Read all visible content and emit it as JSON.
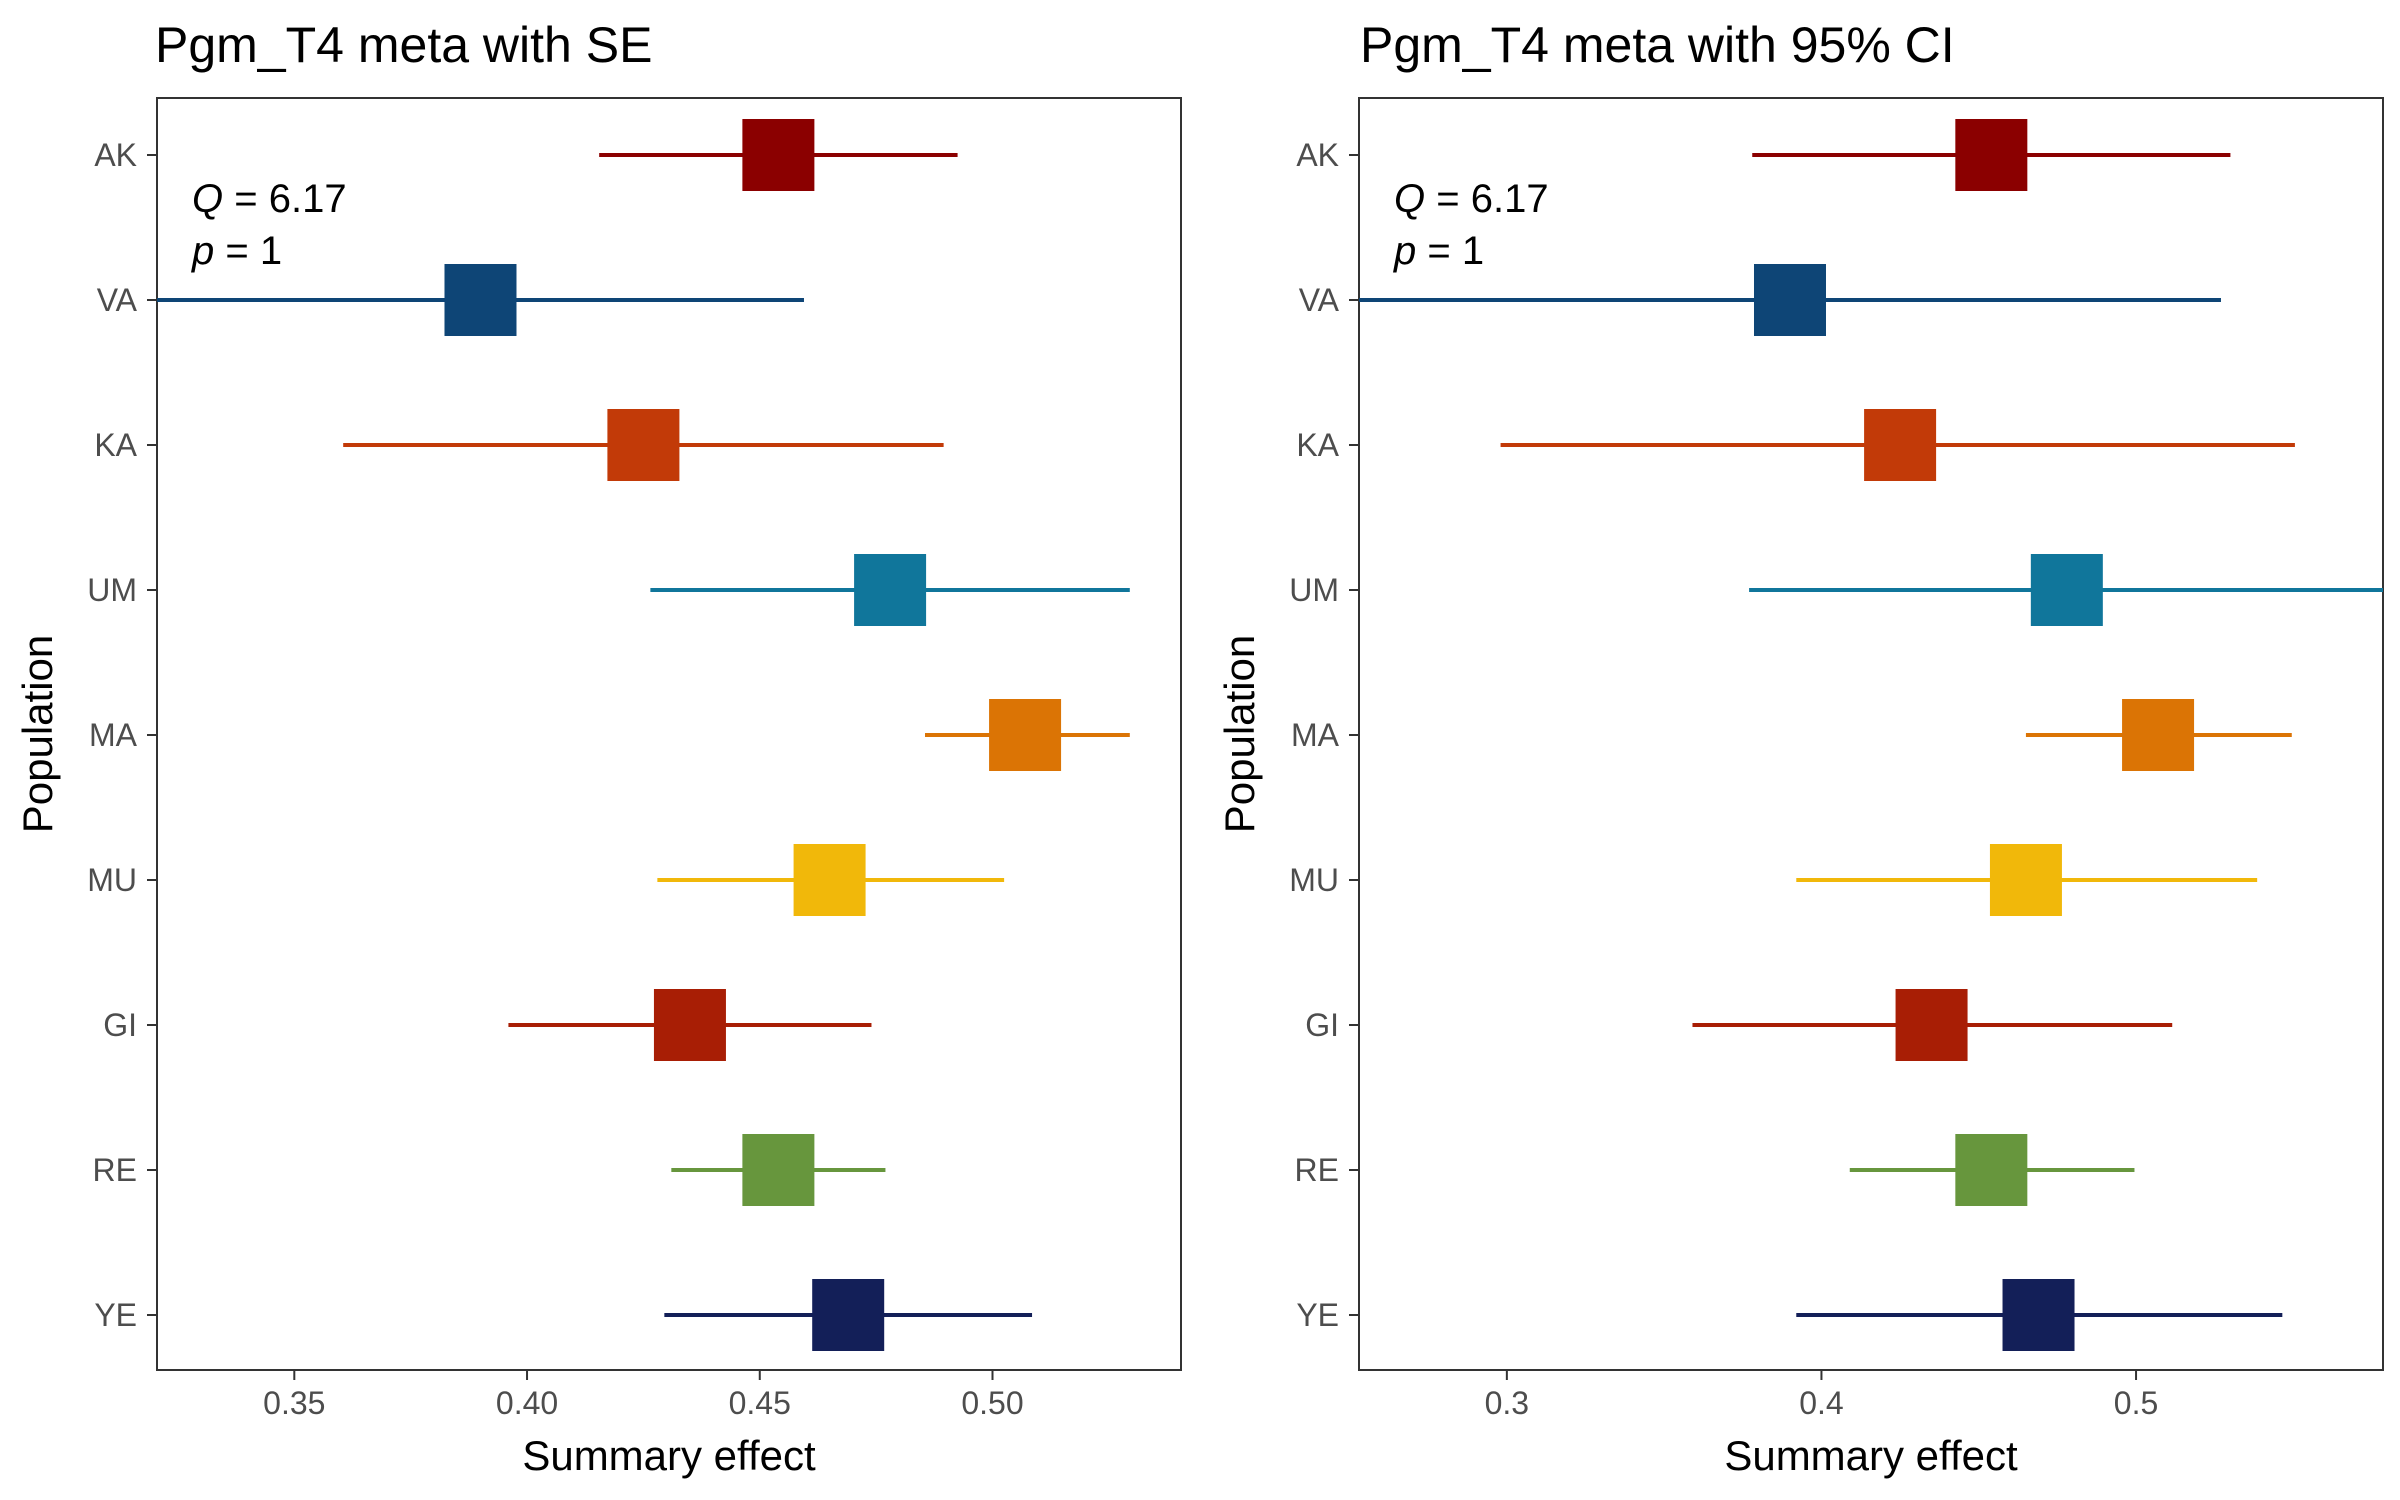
{
  "chart_data": [
    {
      "type": "scatter",
      "subtype": "forest",
      "title": "Pgm_T4 meta with SE",
      "xlabel": "Summary effect",
      "ylabel": "Population",
      "xlim": [
        0.3205,
        0.5405
      ],
      "xticks": [
        0.35,
        0.4,
        0.45,
        0.5
      ],
      "xtick_labels": [
        "0.35",
        "0.40",
        "0.45",
        "0.50"
      ],
      "grid": false,
      "stats": {
        "Q_label": "Q",
        "Q_eq": " = ",
        "Q": "6.17",
        "p_label": "p",
        "p_eq": " = ",
        "p": "1"
      },
      "populations": [
        "AK",
        "VA",
        "KA",
        "UM",
        "MA",
        "MU",
        "GI",
        "RE",
        "YE"
      ],
      "estimates": [
        0.454,
        0.39,
        0.425,
        0.478,
        0.507,
        0.465,
        0.435,
        0.454,
        0.469
      ],
      "lower": [
        0.4155,
        0.3205,
        0.3605,
        0.4265,
        0.4855,
        0.428,
        0.396,
        0.431,
        0.4295
      ],
      "upper": [
        0.4925,
        0.4595,
        0.4895,
        0.5295,
        0.5295,
        0.5025,
        0.474,
        0.477,
        0.5085
      ]
    },
    {
      "type": "scatter",
      "subtype": "forest",
      "title": "Pgm_T4 meta with 95% CI",
      "xlabel": "Summary effect",
      "ylabel": "Population",
      "xlim": [
        0.253,
        0.5785
      ],
      "xticks": [
        0.3,
        0.4,
        0.5
      ],
      "xtick_labels": [
        "0.3",
        "0.4",
        "0.5"
      ],
      "grid": false,
      "stats": {
        "Q_label": "Q",
        "Q_eq": " = ",
        "Q": "6.17",
        "p_label": "p",
        "p_eq": " = ",
        "p": "1"
      },
      "populations": [
        "AK",
        "VA",
        "KA",
        "UM",
        "MA",
        "MU",
        "GI",
        "RE",
        "YE"
      ],
      "estimates": [
        0.454,
        0.39,
        0.425,
        0.478,
        0.507,
        0.465,
        0.435,
        0.454,
        0.469
      ],
      "lower": [
        0.378,
        0.253,
        0.298,
        0.377,
        0.465,
        0.392,
        0.359,
        0.409,
        0.392
      ],
      "upper": [
        0.53,
        0.527,
        0.5505,
        0.5785,
        0.5495,
        0.5385,
        0.5115,
        0.4995,
        0.5465
      ]
    }
  ],
  "colors": {
    "AK": "#8b0000",
    "VA": "#0e4576",
    "KA": "#c23a08",
    "UM": "#10769b",
    "MA": "#db7405",
    "MU": "#f1b80a",
    "GI": "#a81e05",
    "RE": "#67963d",
    "YE": "#131f58"
  }
}
